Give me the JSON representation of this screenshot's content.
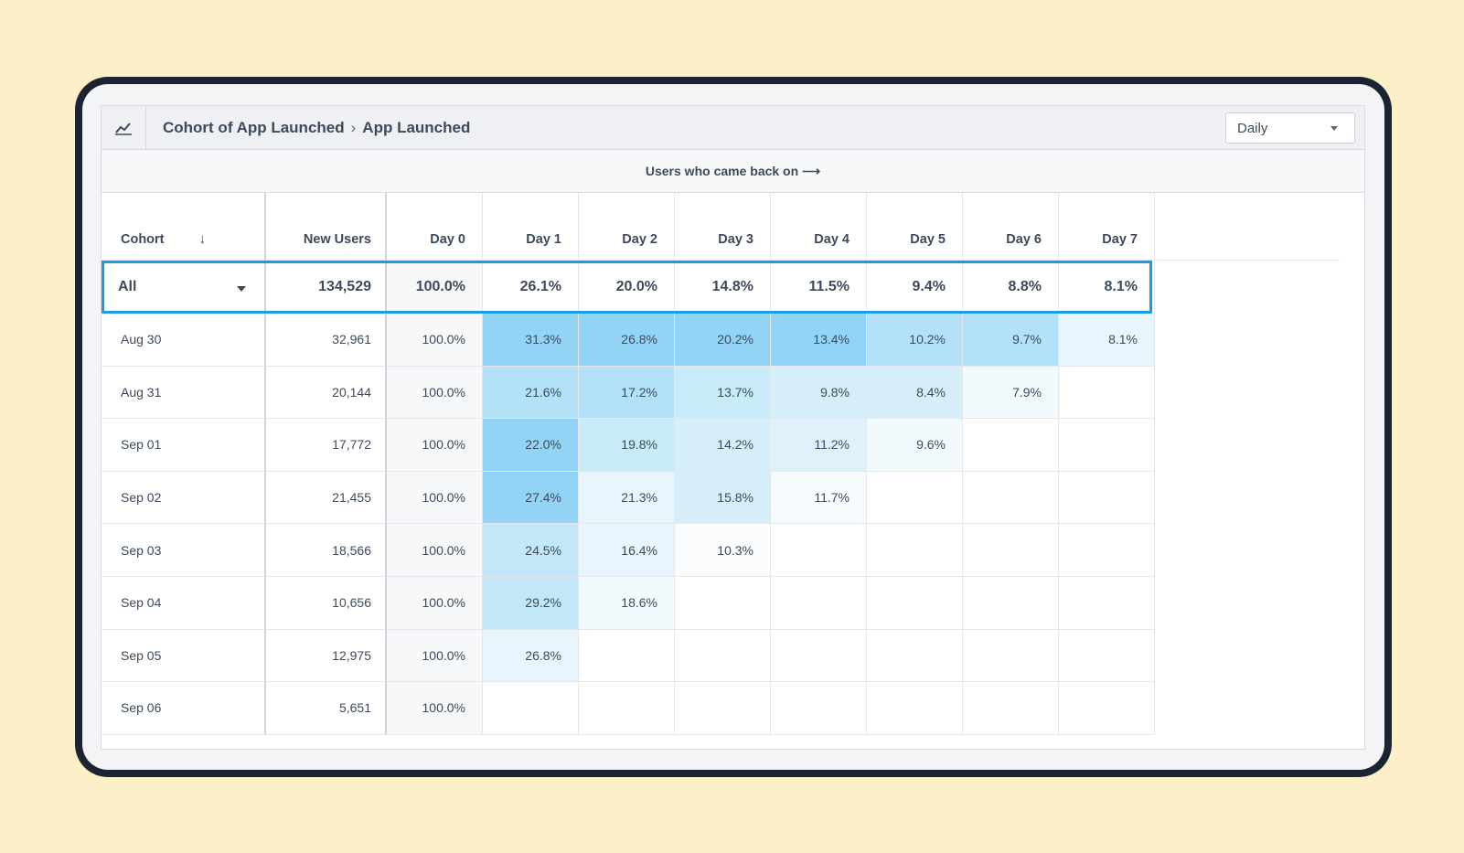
{
  "header": {
    "breadcrumb_parent": "Cohort of App Launched",
    "breadcrumb_separator": "›",
    "breadcrumb_current": "App Launched",
    "interval_select": "Daily"
  },
  "subheader": "Users who came back on ⟶",
  "columns": {
    "cohort": "Cohort",
    "new_users": "New Users",
    "days": [
      "Day 0",
      "Day 1",
      "Day 2",
      "Day 3",
      "Day 4",
      "Day 5",
      "Day 6",
      "Day 7"
    ]
  },
  "all_row": {
    "label": "All",
    "new_users": "134,529",
    "values": [
      "100.0%",
      "26.1%",
      "20.0%",
      "14.8%",
      "11.5%",
      "9.4%",
      "8.8%",
      "8.1%"
    ]
  },
  "rows": [
    {
      "cohort": "Aug 30",
      "new_users": "32,961",
      "values": [
        "100.0%",
        "31.3%",
        "26.8%",
        "20.2%",
        "13.4%",
        "10.2%",
        "9.7%",
        "8.1%"
      ]
    },
    {
      "cohort": "Aug 31",
      "new_users": "20,144",
      "values": [
        "100.0%",
        "21.6%",
        "17.2%",
        "13.7%",
        "9.8%",
        "8.4%",
        "7.9%",
        ""
      ]
    },
    {
      "cohort": "Sep 01",
      "new_users": "17,772",
      "values": [
        "100.0%",
        "22.0%",
        "19.8%",
        "14.2%",
        "11.2%",
        "9.6%",
        "",
        ""
      ]
    },
    {
      "cohort": "Sep 02",
      "new_users": "21,455",
      "values": [
        "100.0%",
        "27.4%",
        "21.3%",
        "15.8%",
        "11.7%",
        "",
        "",
        ""
      ]
    },
    {
      "cohort": "Sep 03",
      "new_users": "18,566",
      "values": [
        "100.0%",
        "24.5%",
        "16.4%",
        "10.3%",
        "",
        "",
        "",
        ""
      ]
    },
    {
      "cohort": "Sep 04",
      "new_users": "10,656",
      "values": [
        "100.0%",
        "29.2%",
        "18.6%",
        "",
        "",
        "",
        "",
        ""
      ]
    },
    {
      "cohort": "Sep 05",
      "new_users": "12,975",
      "values": [
        "100.0%",
        "26.8%",
        "",
        "",
        "",
        "",
        "",
        ""
      ]
    },
    {
      "cohort": "Sep 06",
      "new_users": "5,651",
      "values": [
        "100.0%",
        "",
        "",
        "",
        "",
        "",
        "",
        ""
      ]
    }
  ],
  "heat": [
    [
      "",
      "#93d3f5",
      "#93d3f5",
      "#93d3f5",
      "#93d3f5",
      "#b2e1f8",
      "#b2e1f8",
      "#e8f5fd"
    ],
    [
      "",
      "#b2e1f8",
      "#b2e1f8",
      "#c9eaf9",
      "#d5eefa",
      "#d5eefa",
      "#f3fafe",
      ""
    ],
    [
      "",
      "#93d3f5",
      "#c9eaf9",
      "#d5eefa",
      "#dff1fb",
      "#f3fafe",
      "",
      ""
    ],
    [
      "",
      "#93d3f5",
      "#e8f5fd",
      "#d5eefa",
      "#f7fbfe",
      "",
      "",
      ""
    ],
    [
      "",
      "#c2e7f8",
      "#e8f5fd",
      "#fafcfe",
      "",
      "",
      "",
      ""
    ],
    [
      "",
      "#c2e7f8",
      "#f3fafe",
      "",
      "",
      "",
      "",
      ""
    ],
    [
      "",
      "#e8f5fd",
      "",
      "",
      "",
      "",
      "",
      ""
    ],
    [
      "",
      "",
      "",
      "",
      "",
      "",
      "",
      ""
    ]
  ]
}
